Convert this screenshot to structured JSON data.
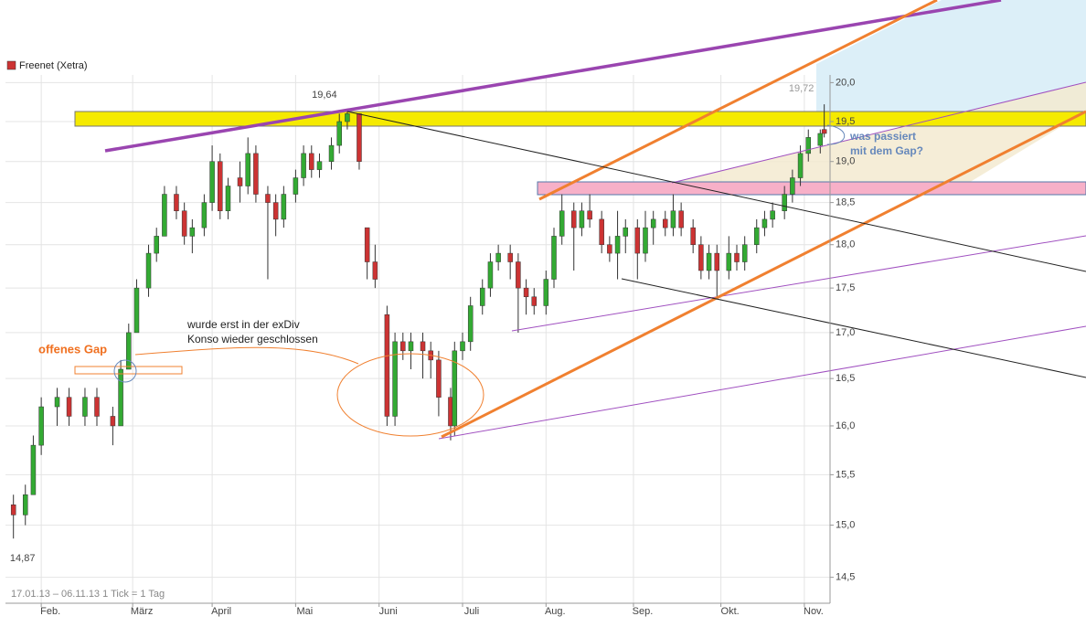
{
  "chart_data": {
    "type": "candlestick",
    "title": "Freenet (Xetra)",
    "footer": "17.01.13 – 06.11.13   1 Tick = 1 Tag",
    "log_scale": true,
    "grid": true,
    "legend_color": "#cc3333",
    "up_color": "#33aa33",
    "down_color": "#cc3333",
    "xlim": [
      -2,
      205
    ],
    "xticks": [
      {
        "value": 7,
        "label": "Feb."
      },
      {
        "value": 30,
        "label": "März"
      },
      {
        "value": 50,
        "label": "April"
      },
      {
        "value": 71,
        "label": "Mai"
      },
      {
        "value": 92,
        "label": "Juni"
      },
      {
        "value": 113,
        "label": "Juli"
      },
      {
        "value": 134,
        "label": "Aug."
      },
      {
        "value": 156,
        "label": "Sep."
      },
      {
        "value": 178,
        "label": "Okt."
      },
      {
        "value": 199,
        "label": "Nov."
      }
    ],
    "ylim": [
      14.3,
      20.1
    ],
    "yticks": [
      {
        "value": 14.5,
        "label": "14,5"
      },
      {
        "value": 15,
        "label": "15,0"
      },
      {
        "value": 15.5,
        "label": "15,5"
      },
      {
        "value": 16,
        "label": "16,0"
      },
      {
        "value": 16.5,
        "label": "16,5"
      },
      {
        "value": 17,
        "label": "17,0"
      },
      {
        "value": 17.5,
        "label": "17,5"
      },
      {
        "value": 18,
        "label": "18,0"
      },
      {
        "value": 18.5,
        "label": "18,5"
      },
      {
        "value": 19,
        "label": "19,0"
      },
      {
        "value": 19.5,
        "label": "19,5"
      },
      {
        "value": 20,
        "label": "20,0"
      }
    ],
    "x": [
      0,
      3,
      5,
      7,
      11,
      14,
      18,
      21,
      25,
      27,
      29,
      31,
      34,
      36,
      38,
      41,
      43,
      45,
      48,
      50,
      52,
      54,
      57,
      59,
      61,
      64,
      66,
      68,
      71,
      73,
      75,
      77,
      80,
      82,
      84,
      87,
      89,
      91,
      94,
      96,
      98,
      100,
      103,
      105,
      107,
      110,
      111,
      113,
      115,
      118,
      120,
      122,
      125,
      127,
      129,
      131,
      134,
      136,
      138,
      141,
      143,
      145,
      148,
      150,
      152,
      154,
      157,
      159,
      161,
      164,
      166,
      168,
      171,
      173,
      175,
      177,
      180,
      182,
      184,
      187,
      189,
      191,
      194,
      196,
      198,
      200,
      203,
      204
    ],
    "open": [
      15.2,
      15.1,
      15.3,
      15.8,
      16.2,
      16.3,
      16.1,
      16.3,
      16.1,
      16.0,
      16.6,
      17.0,
      17.5,
      17.9,
      18.1,
      18.6,
      18.4,
      18.1,
      18.2,
      18.5,
      19.0,
      18.4,
      18.8,
      18.7,
      19.1,
      18.6,
      18.5,
      18.3,
      18.6,
      18.8,
      19.1,
      18.9,
      19.0,
      19.2,
      19.5,
      19.6,
      18.2,
      17.8,
      17.2,
      16.1,
      16.9,
      16.8,
      16.9,
      16.8,
      16.7,
      16.3,
      16.0,
      16.8,
      16.9,
      17.3,
      17.5,
      17.8,
      17.9,
      17.8,
      17.5,
      17.4,
      17.3,
      17.6,
      18.1,
      18.4,
      18.2,
      18.4,
      18.3,
      18.0,
      17.9,
      18.1,
      18.2,
      17.9,
      18.2,
      18.3,
      18.2,
      18.4,
      18.2,
      18.0,
      17.7,
      17.9,
      17.7,
      17.9,
      17.8,
      18.0,
      18.2,
      18.3,
      18.4,
      18.6,
      18.8,
      19.1,
      19.2,
      19.4
    ],
    "high": [
      15.3,
      15.4,
      15.9,
      16.3,
      16.4,
      16.4,
      16.4,
      16.4,
      16.2,
      16.7,
      17.1,
      17.6,
      18.0,
      18.2,
      18.7,
      18.7,
      18.5,
      18.3,
      18.6,
      19.2,
      19.1,
      18.8,
      19.0,
      19.3,
      19.2,
      18.7,
      18.6,
      18.7,
      18.9,
      19.2,
      19.2,
      19.1,
      19.3,
      19.6,
      19.64,
      19.6,
      18.2,
      18.0,
      17.3,
      17.0,
      17.0,
      17.0,
      17.0,
      16.9,
      16.8,
      16.4,
      16.9,
      17.0,
      17.4,
      17.6,
      17.9,
      18.0,
      18.0,
      17.9,
      17.6,
      17.5,
      17.7,
      18.2,
      18.6,
      18.5,
      18.5,
      18.6,
      18.4,
      18.1,
      18.4,
      18.3,
      18.3,
      18.4,
      18.4,
      18.4,
      18.6,
      18.5,
      18.3,
      18.1,
      18.0,
      18.0,
      18.1,
      18.0,
      18.1,
      18.3,
      18.4,
      18.5,
      18.7,
      18.9,
      19.2,
      19.4,
      19.4,
      19.72
    ],
    "low": [
      14.87,
      15.0,
      15.3,
      15.7,
      16.0,
      16.0,
      16.0,
      16.0,
      15.8,
      16.0,
      16.6,
      17.0,
      17.4,
      17.8,
      18.1,
      18.3,
      18.0,
      17.9,
      18.1,
      18.4,
      18.3,
      18.3,
      18.5,
      18.6,
      18.5,
      17.6,
      18.1,
      18.2,
      18.5,
      18.7,
      18.8,
      18.8,
      18.9,
      19.1,
      19.4,
      18.9,
      17.6,
      17.5,
      16.0,
      16.0,
      16.7,
      16.6,
      16.5,
      16.5,
      16.1,
      15.85,
      15.9,
      16.7,
      16.8,
      17.2,
      17.4,
      17.7,
      17.6,
      17.0,
      17.2,
      17.2,
      17.2,
      17.5,
      18.0,
      17.7,
      18.1,
      18.2,
      17.9,
      17.8,
      17.6,
      17.9,
      17.6,
      17.8,
      18.0,
      18.1,
      18.1,
      18.1,
      17.9,
      17.6,
      17.6,
      17.4,
      17.6,
      17.7,
      17.7,
      17.9,
      18.1,
      18.2,
      18.3,
      18.5,
      18.7,
      19.0,
      19.1,
      19.3
    ],
    "close": [
      15.1,
      15.3,
      15.8,
      16.2,
      16.3,
      16.1,
      16.3,
      16.1,
      16.0,
      16.6,
      17.0,
      17.5,
      17.9,
      18.1,
      18.6,
      18.4,
      18.1,
      18.2,
      18.5,
      19.0,
      18.4,
      18.7,
      18.7,
      19.1,
      18.6,
      18.5,
      18.3,
      18.6,
      18.8,
      19.1,
      18.9,
      19.0,
      19.2,
      19.5,
      19.6,
      19.0,
      17.8,
      17.6,
      16.1,
      16.9,
      16.8,
      16.9,
      16.8,
      16.7,
      16.3,
      16.0,
      16.8,
      16.9,
      17.3,
      17.5,
      17.8,
      17.9,
      17.8,
      17.5,
      17.4,
      17.3,
      17.6,
      18.1,
      18.4,
      18.2,
      18.4,
      18.3,
      18.0,
      17.9,
      18.1,
      18.2,
      17.9,
      18.2,
      18.3,
      18.2,
      18.4,
      18.2,
      18.0,
      17.7,
      17.9,
      17.7,
      17.9,
      17.8,
      18.0,
      18.2,
      18.3,
      18.4,
      18.6,
      18.8,
      19.1,
      19.3,
      19.35,
      19.35
    ],
    "annotations": [
      {
        "text": "19,64",
        "x": 84,
        "value": 19.64
      },
      {
        "text": "19,72",
        "x": 204,
        "value": 19.72
      },
      {
        "text": "14,87",
        "x": 0,
        "value": 14.87
      }
    ],
    "notes": [
      "offenes Gap",
      "wurde erst in der exDiv",
      "Konso wieder geschlossen",
      "was passiert",
      "mit dem Gap?"
    ]
  }
}
